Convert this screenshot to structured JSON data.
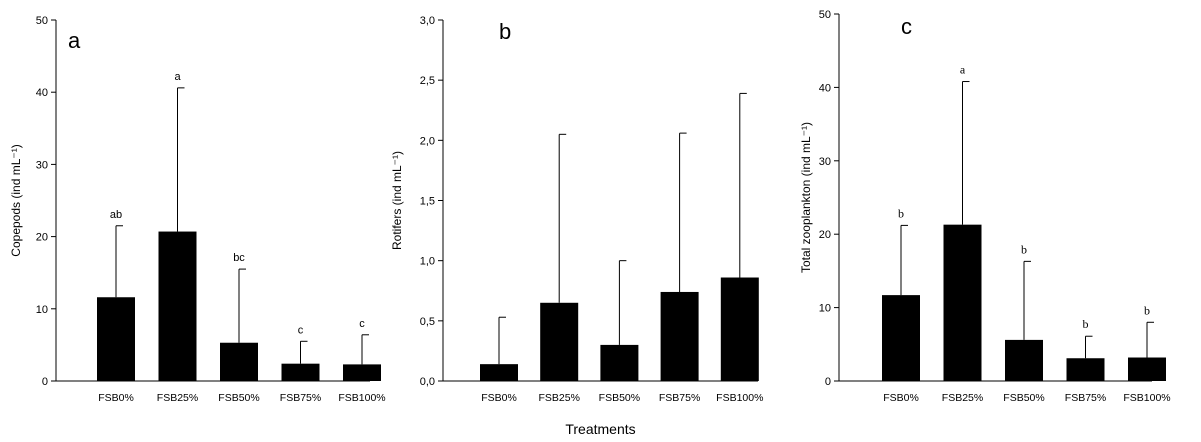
{
  "figure": {
    "shared_xlabel": "Treatments"
  },
  "chart_data": [
    {
      "type": "bar",
      "panel_label": "a",
      "ylabel": "Copepods (ind mL⁻¹)",
      "ylim": [
        0,
        50
      ],
      "yticks": [
        0,
        10,
        20,
        30,
        40,
        50
      ],
      "ytick_labels": [
        "0",
        "10",
        "20",
        "30",
        "40",
        "50"
      ],
      "categories": [
        "FSB0%",
        "FSB25%",
        "FSB50%",
        "FSB75%",
        "FSB100%"
      ],
      "values": [
        11.6,
        20.7,
        5.3,
        2.4,
        2.3
      ],
      "error_upper": [
        21.5,
        40.6,
        15.5,
        5.5,
        6.4
      ],
      "significance_letters": [
        "ab",
        "a",
        "bc",
        "c",
        "c"
      ],
      "letter_font": "sans"
    },
    {
      "type": "bar",
      "panel_label": "b",
      "ylabel": "Rotifers (ind mL⁻¹)",
      "ylim": [
        0,
        3.0
      ],
      "yticks": [
        0,
        0.5,
        1.0,
        1.5,
        2.0,
        2.5,
        3.0
      ],
      "ytick_labels": [
        "0,0",
        "0,5",
        "1,0",
        "1,5",
        "2,0",
        "2,5",
        "3,0"
      ],
      "categories": [
        "FSB0%",
        "FSB25%",
        "FSB50%",
        "FSB75%",
        "FSB100%"
      ],
      "values": [
        0.14,
        0.65,
        0.3,
        0.74,
        0.86
      ],
      "error_upper": [
        0.53,
        2.05,
        1.0,
        2.06,
        2.39
      ],
      "significance_letters": [],
      "letter_font": "sans"
    },
    {
      "type": "bar",
      "panel_label": "c",
      "ylabel": "Total zooplankton (ind mL⁻¹)",
      "ylim": [
        0,
        50
      ],
      "yticks": [
        0,
        10,
        20,
        30,
        40,
        50
      ],
      "ytick_labels": [
        "0",
        "10",
        "20",
        "30",
        "40",
        "50"
      ],
      "categories": [
        "FSB0%",
        "FSB25%",
        "FSB50%",
        "FSB75%",
        "FSB100%"
      ],
      "values": [
        11.7,
        21.3,
        5.6,
        3.1,
        3.2
      ],
      "error_upper": [
        21.2,
        40.8,
        16.3,
        6.1,
        8.0
      ],
      "significance_letters": [
        "b",
        "a",
        "b",
        "b",
        "b"
      ],
      "letter_font": "serif"
    }
  ]
}
